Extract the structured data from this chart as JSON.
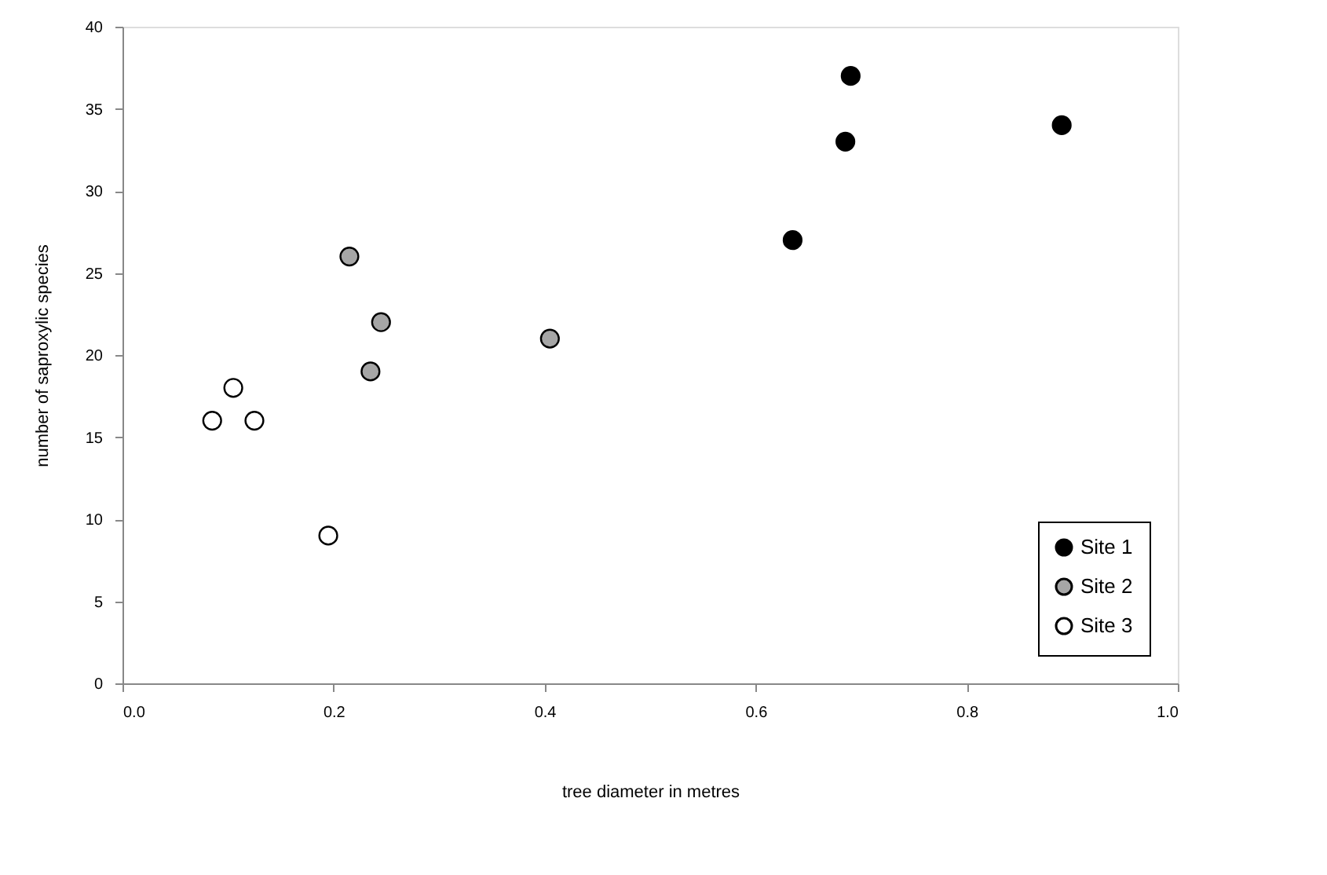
{
  "chart_data": {
    "type": "scatter",
    "xlabel": "tree diameter in metres",
    "ylabel": "number of saproxylic species",
    "xlim": [
      0,
      1
    ],
    "xticks": [
      {
        "value": 0,
        "label": "0.0"
      },
      {
        "value": 0.2,
        "label": "0.2"
      },
      {
        "value": 0.4,
        "label": "0.4"
      },
      {
        "value": 0.6,
        "label": "0.6"
      },
      {
        "value": 0.8,
        "label": "0.8"
      },
      {
        "value": 1,
        "label": "1.0"
      }
    ],
    "ylim": [
      0,
      40
    ],
    "yticks": [
      0,
      5,
      10,
      15,
      20,
      25,
      30,
      35,
      40
    ],
    "grid": false,
    "legend": "bottom right",
    "marker": "circle",
    "series": [
      {
        "name": "Site 1",
        "color": "#000000",
        "x": [
          0.69,
          0.685,
          0.635,
          0.89
        ],
        "values": [
          37,
          33,
          27,
          34
        ]
      },
      {
        "name": "Site 2",
        "color": "#a6a6a6",
        "x": [
          0.215,
          0.245,
          0.235,
          0.405
        ],
        "values": [
          26,
          22,
          19,
          21
        ]
      },
      {
        "name": "Site 3",
        "color": "#ffffff",
        "x": [
          0.085,
          0.105,
          0.125,
          0.195
        ],
        "values": [
          16,
          18,
          16,
          9
        ]
      }
    ]
  }
}
